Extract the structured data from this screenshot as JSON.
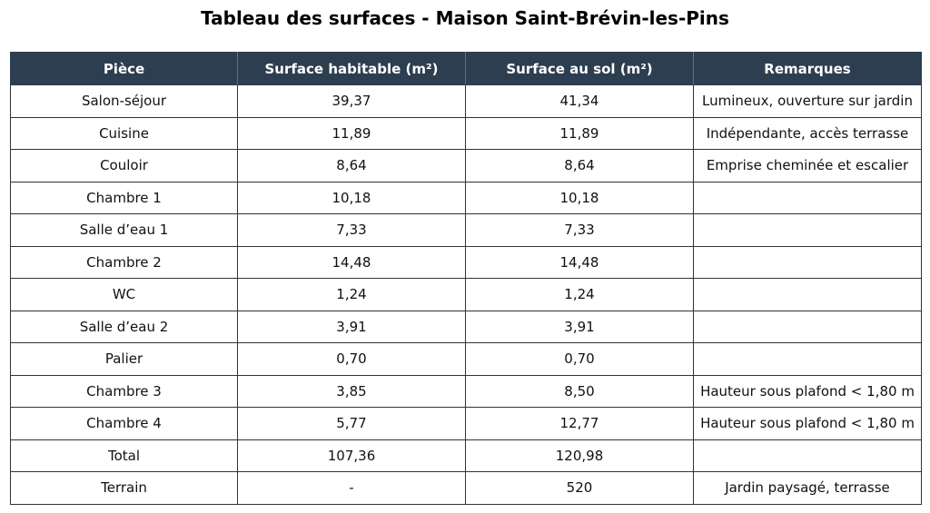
{
  "title": "Tableau des surfaces - Maison Saint-Brévin-les-Pins",
  "table": {
    "headers": [
      "Pièce",
      "Surface habitable (m²)",
      "Surface au sol (m²)",
      "Remarques"
    ],
    "rows": [
      [
        "Salon-séjour",
        "39,37",
        "41,34",
        "Lumineux, ouverture sur jardin"
      ],
      [
        "Cuisine",
        "11,89",
        "11,89",
        "Indépendante, accès terrasse"
      ],
      [
        "Couloir",
        "8,64",
        "8,64",
        "Emprise cheminée et escalier"
      ],
      [
        "Chambre 1",
        "10,18",
        "10,18",
        ""
      ],
      [
        "Salle d’eau 1",
        "7,33",
        "7,33",
        ""
      ],
      [
        "Chambre 2",
        "14,48",
        "14,48",
        ""
      ],
      [
        "WC",
        "1,24",
        "1,24",
        ""
      ],
      [
        "Salle d’eau 2",
        "3,91",
        "3,91",
        ""
      ],
      [
        "Palier",
        "0,70",
        "0,70",
        ""
      ],
      [
        "Chambre 3",
        "3,85",
        "8,50",
        "Hauteur sous plafond < 1,80 m"
      ],
      [
        "Chambre 4",
        "5,77",
        "12,77",
        "Hauteur sous plafond < 1,80 m"
      ],
      [
        "Total",
        "107,36",
        "120,98",
        ""
      ],
      [
        "Terrain",
        "-",
        "520",
        "Jardin paysagé, terrasse"
      ]
    ]
  }
}
